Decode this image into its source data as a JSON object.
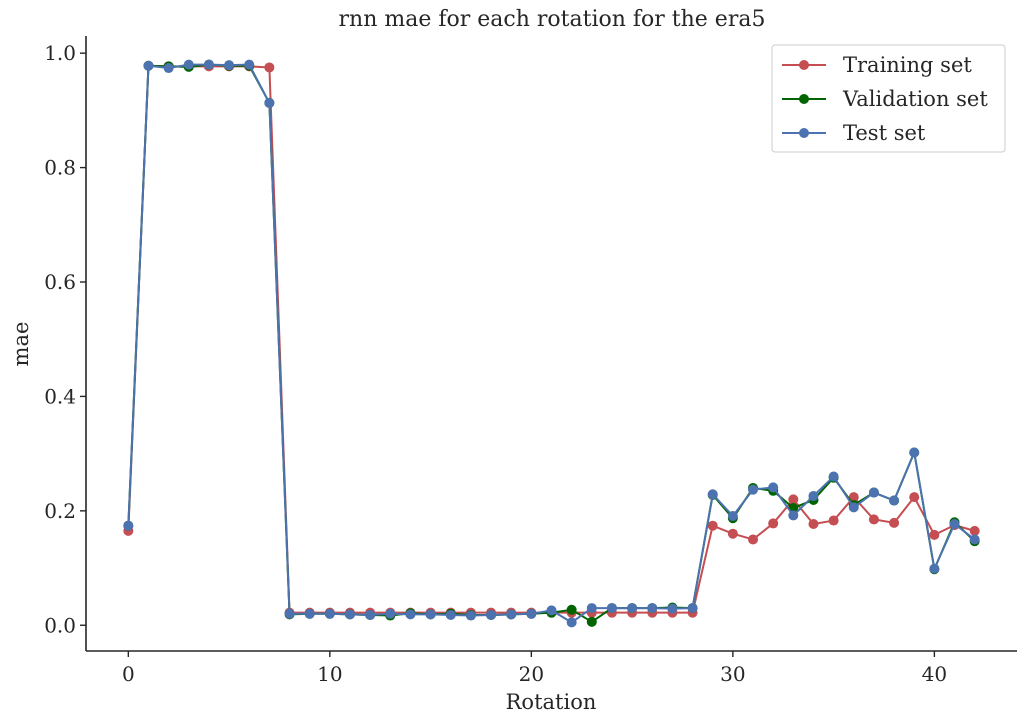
{
  "chart_data": {
    "type": "line",
    "title": "rnn mae for each rotation for the era5",
    "xlabel": "Rotation",
    "ylabel": "mae",
    "xlim": [
      -2.1,
      44.1
    ],
    "ylim": [
      -0.045,
      1.03
    ],
    "xticks": [
      0,
      10,
      20,
      30,
      40
    ],
    "yticks": [
      0.0,
      0.2,
      0.4,
      0.6,
      0.8,
      1.0
    ],
    "xtick_labels": [
      "0",
      "10",
      "20",
      "30",
      "40"
    ],
    "ytick_labels": [
      "0.0",
      "0.2",
      "0.4",
      "0.6",
      "0.8",
      "1.0"
    ],
    "grid": false,
    "legend_position": "top-right",
    "x": [
      0,
      1,
      2,
      3,
      4,
      5,
      6,
      7,
      8,
      9,
      10,
      11,
      12,
      13,
      14,
      15,
      16,
      17,
      18,
      19,
      20,
      21,
      22,
      23,
      24,
      25,
      26,
      27,
      28,
      29,
      30,
      31,
      32,
      33,
      34,
      35,
      36,
      37,
      38,
      39,
      40,
      41,
      42
    ],
    "series": [
      {
        "name": "Training set",
        "color": "#c44e52",
        "values": [
          0.165,
          0.978,
          0.977,
          0.977,
          0.977,
          0.977,
          0.977,
          0.975,
          0.022,
          0.022,
          0.022,
          0.022,
          0.022,
          0.022,
          0.022,
          0.022,
          0.022,
          0.022,
          0.022,
          0.022,
          0.022,
          0.022,
          0.022,
          0.022,
          0.022,
          0.022,
          0.022,
          0.022,
          0.022,
          0.174,
          0.16,
          0.15,
          0.178,
          0.22,
          0.177,
          0.183,
          0.224,
          0.185,
          0.179,
          0.224,
          0.158,
          0.175,
          0.165
        ]
      },
      {
        "name": "Validation set",
        "color": "#006400",
        "values": [
          0.174,
          0.978,
          0.977,
          0.976,
          0.98,
          0.978,
          0.978,
          0.913,
          0.019,
          0.02,
          0.02,
          0.019,
          0.018,
          0.017,
          0.021,
          0.019,
          0.02,
          0.018,
          0.018,
          0.019,
          0.02,
          0.022,
          0.027,
          0.006,
          0.03,
          0.03,
          0.03,
          0.031,
          0.03,
          0.228,
          0.187,
          0.24,
          0.235,
          0.205,
          0.219,
          0.258,
          0.21,
          0.232,
          0.218,
          0.302,
          0.098,
          0.18,
          0.147
        ]
      },
      {
        "name": "Test set",
        "color": "#4c72b0",
        "values": [
          0.174,
          0.978,
          0.974,
          0.98,
          0.98,
          0.979,
          0.98,
          0.913,
          0.02,
          0.02,
          0.02,
          0.019,
          0.018,
          0.02,
          0.019,
          0.019,
          0.018,
          0.017,
          0.018,
          0.019,
          0.02,
          0.026,
          0.005,
          0.03,
          0.03,
          0.03,
          0.03,
          0.029,
          0.03,
          0.229,
          0.191,
          0.237,
          0.241,
          0.192,
          0.226,
          0.26,
          0.206,
          0.232,
          0.218,
          0.302,
          0.099,
          0.177,
          0.15
        ]
      }
    ]
  }
}
